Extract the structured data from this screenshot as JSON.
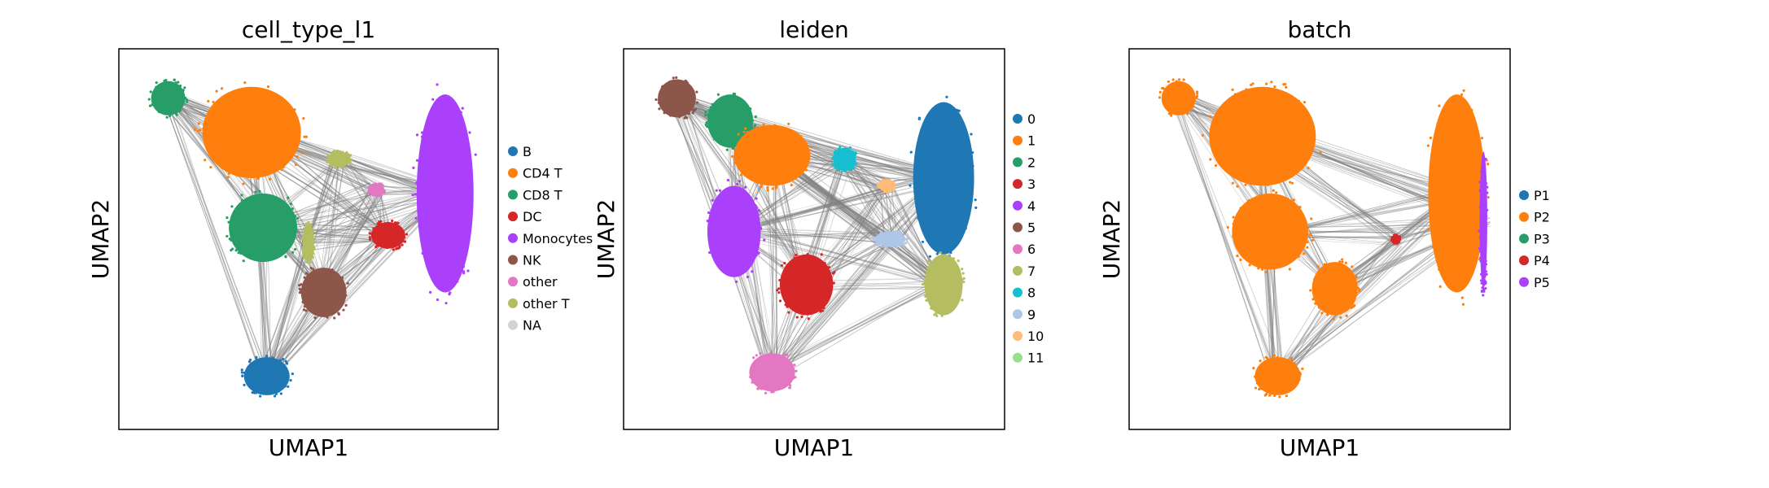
{
  "chart_data": [
    {
      "type": "scatter",
      "plot": "umap",
      "title": "cell_type_l1",
      "xlabel": "UMAP1",
      "ylabel": "UMAP2",
      "xticks": false,
      "yticks": false,
      "legend_position": "right",
      "legend": [
        {
          "label": "B",
          "color": "#1f77b4"
        },
        {
          "label": "CD4 T",
          "color": "#ff7f0e"
        },
        {
          "label": "CD8 T",
          "color": "#279e68"
        },
        {
          "label": "DC",
          "color": "#d62728"
        },
        {
          "label": "Monocytes",
          "color": "#aa40fc"
        },
        {
          "label": "NK",
          "color": "#8c564b"
        },
        {
          "label": "other",
          "color": "#e377c2"
        },
        {
          "label": "other T",
          "color": "#b5bd61"
        },
        {
          "label": "NA",
          "color": "#d3d3d3"
        }
      ],
      "clusters": [
        {
          "group": "CD8 T",
          "x": 0.13,
          "y": 0.87,
          "rx": 0.045,
          "ry": 0.045
        },
        {
          "group": "CD4 T",
          "x": 0.35,
          "y": 0.78,
          "rx": 0.13,
          "ry": 0.12
        },
        {
          "group": "Monocytes",
          "x": 0.86,
          "y": 0.62,
          "rx": 0.075,
          "ry": 0.26
        },
        {
          "group": "CD8 T",
          "x": 0.38,
          "y": 0.53,
          "rx": 0.09,
          "ry": 0.09
        },
        {
          "group": "NK",
          "x": 0.54,
          "y": 0.36,
          "rx": 0.06,
          "ry": 0.065
        },
        {
          "group": "DC",
          "x": 0.71,
          "y": 0.51,
          "rx": 0.045,
          "ry": 0.035
        },
        {
          "group": "other T",
          "x": 0.58,
          "y": 0.71,
          "rx": 0.03,
          "ry": 0.02
        },
        {
          "group": "other T",
          "x": 0.5,
          "y": 0.49,
          "rx": 0.015,
          "ry": 0.05
        },
        {
          "group": "other",
          "x": 0.68,
          "y": 0.63,
          "rx": 0.02,
          "ry": 0.015
        },
        {
          "group": "B",
          "x": 0.39,
          "y": 0.14,
          "rx": 0.06,
          "ry": 0.05
        }
      ]
    },
    {
      "type": "scatter",
      "plot": "umap",
      "title": "leiden",
      "xlabel": "UMAP1",
      "ylabel": "UMAP2",
      "xticks": false,
      "yticks": false,
      "legend_position": "right",
      "legend": [
        {
          "label": "0",
          "color": "#1f77b4"
        },
        {
          "label": "1",
          "color": "#ff7f0e"
        },
        {
          "label": "2",
          "color": "#279e68"
        },
        {
          "label": "3",
          "color": "#d62728"
        },
        {
          "label": "4",
          "color": "#aa40fc"
        },
        {
          "label": "5",
          "color": "#8c564b"
        },
        {
          "label": "6",
          "color": "#e377c2"
        },
        {
          "label": "7",
          "color": "#b5bd61"
        },
        {
          "label": "8",
          "color": "#17becf"
        },
        {
          "label": "9",
          "color": "#aec7e8"
        },
        {
          "label": "10",
          "color": "#ffbb78"
        },
        {
          "label": "11",
          "color": "#98df8a"
        }
      ],
      "clusters": [
        {
          "group": "5",
          "x": 0.14,
          "y": 0.87,
          "rx": 0.05,
          "ry": 0.05
        },
        {
          "group": "2",
          "x": 0.28,
          "y": 0.81,
          "rx": 0.06,
          "ry": 0.07
        },
        {
          "group": "1",
          "x": 0.39,
          "y": 0.72,
          "rx": 0.1,
          "ry": 0.08
        },
        {
          "group": "4",
          "x": 0.29,
          "y": 0.52,
          "rx": 0.07,
          "ry": 0.12
        },
        {
          "group": "3",
          "x": 0.48,
          "y": 0.38,
          "rx": 0.07,
          "ry": 0.08
        },
        {
          "group": "0",
          "x": 0.84,
          "y": 0.66,
          "rx": 0.08,
          "ry": 0.2
        },
        {
          "group": "7",
          "x": 0.84,
          "y": 0.38,
          "rx": 0.05,
          "ry": 0.08
        },
        {
          "group": "8",
          "x": 0.58,
          "y": 0.71,
          "rx": 0.03,
          "ry": 0.03
        },
        {
          "group": "9",
          "x": 0.7,
          "y": 0.5,
          "rx": 0.04,
          "ry": 0.02
        },
        {
          "group": "10",
          "x": 0.69,
          "y": 0.64,
          "rx": 0.02,
          "ry": 0.015
        },
        {
          "group": "6",
          "x": 0.39,
          "y": 0.15,
          "rx": 0.06,
          "ry": 0.05
        }
      ]
    },
    {
      "type": "scatter",
      "plot": "umap",
      "title": "batch",
      "xlabel": "UMAP1",
      "ylabel": "UMAP2",
      "xticks": false,
      "yticks": false,
      "legend_position": "right",
      "legend": [
        {
          "label": "P1",
          "color": "#1f77b4"
        },
        {
          "label": "P2",
          "color": "#ff7f0e"
        },
        {
          "label": "P3",
          "color": "#279e68"
        },
        {
          "label": "P4",
          "color": "#d62728"
        },
        {
          "label": "P5",
          "color": "#aa40fc"
        }
      ],
      "clusters": [
        {
          "group": "P2",
          "x": 0.13,
          "y": 0.87,
          "rx": 0.045,
          "ry": 0.045
        },
        {
          "group": "P2",
          "x": 0.35,
          "y": 0.77,
          "rx": 0.14,
          "ry": 0.13
        },
        {
          "group": "P2",
          "x": 0.86,
          "y": 0.62,
          "rx": 0.075,
          "ry": 0.26
        },
        {
          "group": "P2",
          "x": 0.37,
          "y": 0.52,
          "rx": 0.1,
          "ry": 0.1
        },
        {
          "group": "P2",
          "x": 0.54,
          "y": 0.37,
          "rx": 0.06,
          "ry": 0.07
        },
        {
          "group": "P2",
          "x": 0.39,
          "y": 0.14,
          "rx": 0.06,
          "ry": 0.05
        },
        {
          "group": "P5",
          "x": 0.93,
          "y": 0.55,
          "rx": 0.01,
          "ry": 0.18
        },
        {
          "group": "P4",
          "x": 0.7,
          "y": 0.5,
          "rx": 0.01,
          "ry": 0.01
        }
      ]
    }
  ]
}
